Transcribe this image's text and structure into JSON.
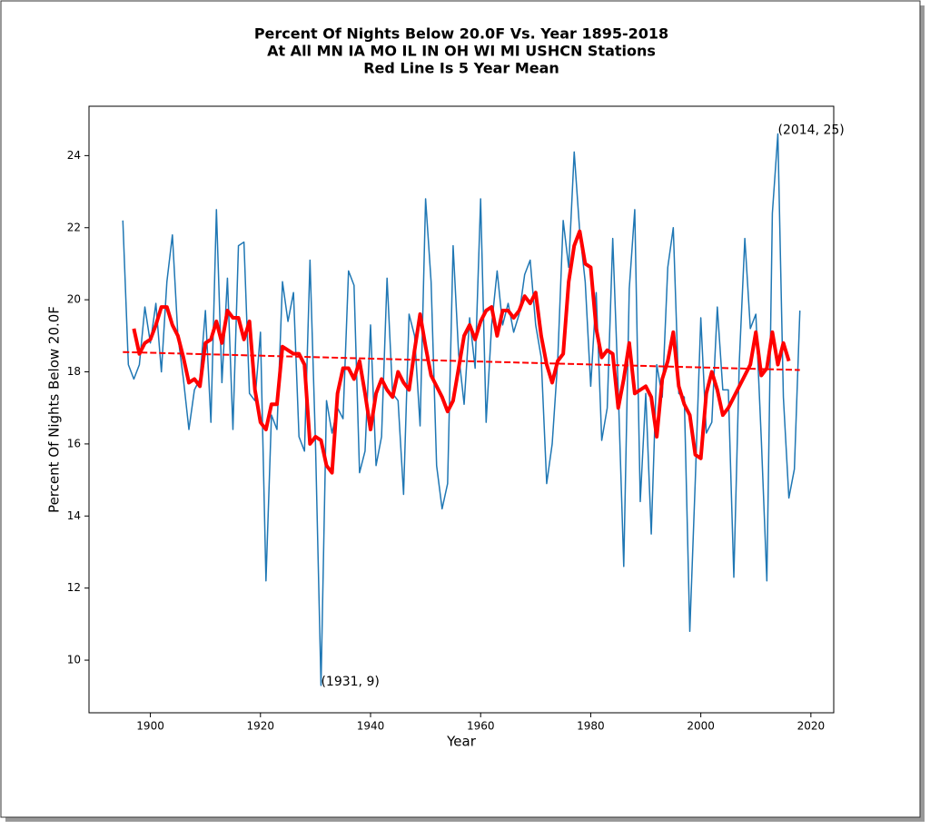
{
  "chart_data": {
    "type": "line",
    "title": [
      "Percent Of Nights Below 20.0F Vs. Year 1895-2018",
      "At All MN IA MO IL IN OH WI MI USHCN Stations",
      "Red Line Is 5 Year Mean"
    ],
    "xlabel": "Year",
    "ylabel": "Percent Of Nights Below 20.0F",
    "x": [
      1895,
      1896,
      1897,
      1898,
      1899,
      1900,
      1901,
      1902,
      1903,
      1904,
      1905,
      1906,
      1907,
      1908,
      1909,
      1910,
      1911,
      1912,
      1913,
      1914,
      1915,
      1916,
      1917,
      1918,
      1919,
      1920,
      1921,
      1922,
      1923,
      1924,
      1925,
      1926,
      1927,
      1928,
      1929,
      1930,
      1931,
      1932,
      1933,
      1934,
      1935,
      1936,
      1937,
      1938,
      1939,
      1940,
      1941,
      1942,
      1943,
      1944,
      1945,
      1946,
      1947,
      1948,
      1949,
      1950,
      1951,
      1952,
      1953,
      1954,
      1955,
      1956,
      1957,
      1958,
      1959,
      1960,
      1961,
      1962,
      1963,
      1964,
      1965,
      1966,
      1967,
      1968,
      1969,
      1970,
      1971,
      1972,
      1973,
      1974,
      1975,
      1976,
      1977,
      1978,
      1979,
      1980,
      1981,
      1982,
      1983,
      1984,
      1985,
      1986,
      1987,
      1988,
      1989,
      1990,
      1991,
      1992,
      1993,
      1994,
      1995,
      1996,
      1997,
      1998,
      1999,
      2000,
      2001,
      2002,
      2003,
      2004,
      2005,
      2006,
      2007,
      2008,
      2009,
      2010,
      2011,
      2012,
      2013,
      2014,
      2015,
      2016,
      2017,
      2018
    ],
    "series": [
      {
        "color": "#1f77b4",
        "width": 1.5,
        "values": [
          22.2,
          18.2,
          17.8,
          18.2,
          19.8,
          18.8,
          19.9,
          18.0,
          20.5,
          21.8,
          19.0,
          17.8,
          16.4,
          17.5,
          17.8,
          19.7,
          16.6,
          22.5,
          17.7,
          20.6,
          16.4,
          21.5,
          21.6,
          17.4,
          17.2,
          19.1,
          12.2,
          16.8,
          16.4,
          20.5,
          19.4,
          20.2,
          16.2,
          15.8,
          21.1,
          16.0,
          9.3,
          17.2,
          16.3,
          17.0,
          16.7,
          20.8,
          20.4,
          15.2,
          15.8,
          19.3,
          15.4,
          16.2,
          20.6,
          17.4,
          17.2,
          14.6,
          19.6,
          19.0,
          16.5,
          22.8,
          20.5,
          15.4,
          14.2,
          14.9,
          21.5,
          18.5,
          17.1,
          19.5,
          18.1,
          22.8,
          16.6,
          19.3,
          20.8,
          19.3,
          19.9,
          19.1,
          19.6,
          20.7,
          21.1,
          19.3,
          18.4,
          14.9,
          16.0,
          18.3,
          22.2,
          20.9,
          24.1,
          21.9,
          20.5,
          17.6,
          20.2,
          16.1,
          17.0,
          21.7,
          17.5,
          12.6,
          20.3,
          22.5,
          14.4,
          17.4,
          13.5,
          18.2,
          17.3,
          20.9,
          22.0,
          17.4,
          17.3,
          10.8,
          15.0,
          19.5,
          16.3,
          16.6,
          19.8,
          17.5,
          17.5,
          12.3,
          18.3,
          21.7,
          19.2,
          19.6,
          16.1,
          12.2,
          22.4,
          24.6,
          17.3,
          14.5,
          15.3,
          19.7
        ]
      },
      {
        "color": "#ff0000",
        "width": 4,
        "values": [
          null,
          null,
          19.2,
          18.5,
          18.8,
          18.9,
          19.3,
          19.8,
          19.8,
          19.3,
          19.0,
          18.4,
          17.7,
          17.8,
          17.6,
          18.8,
          18.9,
          19.4,
          18.8,
          19.7,
          19.5,
          19.5,
          18.9,
          19.4,
          17.5,
          16.6,
          16.4,
          17.1,
          17.1,
          18.7,
          18.6,
          18.5,
          18.5,
          18.2,
          16.0,
          16.2,
          16.1,
          15.4,
          15.2,
          17.4,
          18.1,
          18.1,
          17.8,
          18.3,
          17.4,
          16.4,
          17.4,
          17.8,
          17.5,
          17.3,
          18.0,
          17.7,
          17.5,
          18.6,
          19.6,
          18.7,
          17.9,
          17.6,
          17.3,
          16.9,
          17.2,
          18.1,
          19.0,
          19.3,
          18.9,
          19.4,
          19.7,
          19.8,
          19.0,
          19.7,
          19.7,
          19.5,
          19.7,
          20.1,
          19.9,
          20.2,
          19.0,
          18.2,
          17.7,
          18.3,
          18.5,
          20.5,
          21.5,
          21.9,
          21.0,
          20.9,
          19.2,
          18.4,
          18.6,
          18.5,
          17.0,
          17.8,
          18.8,
          17.4,
          17.5,
          17.6,
          17.3,
          16.2,
          17.8,
          18.3,
          19.1,
          17.6,
          17.1,
          16.8,
          15.7,
          15.6,
          17.4,
          18.0,
          17.5,
          16.8,
          17.0,
          17.3,
          17.6,
          17.9,
          18.2,
          19.1,
          17.9,
          18.1,
          19.1,
          18.2,
          18.8,
          18.3,
          null,
          null
        ]
      },
      {
        "color": "#ff0000",
        "width": 2,
        "dashed": true,
        "x": [
          1895,
          2018
        ],
        "values": [
          18.55,
          18.05
        ]
      }
    ],
    "annotations": [
      {
        "text": "(2014, 25)",
        "x": 2014,
        "y": 24.6
      },
      {
        "text": "(1931, 9)",
        "x": 1931,
        "y": 9.3
      }
    ],
    "xlim": [
      1888.85,
      2024.15
    ],
    "ylim": [
      8.54,
      25.37
    ],
    "xticks": [
      1900,
      1920,
      1940,
      1960,
      1980,
      2000,
      2020
    ],
    "yticks": [
      10,
      12,
      14,
      16,
      18,
      20,
      22,
      24
    ],
    "grid": false
  }
}
